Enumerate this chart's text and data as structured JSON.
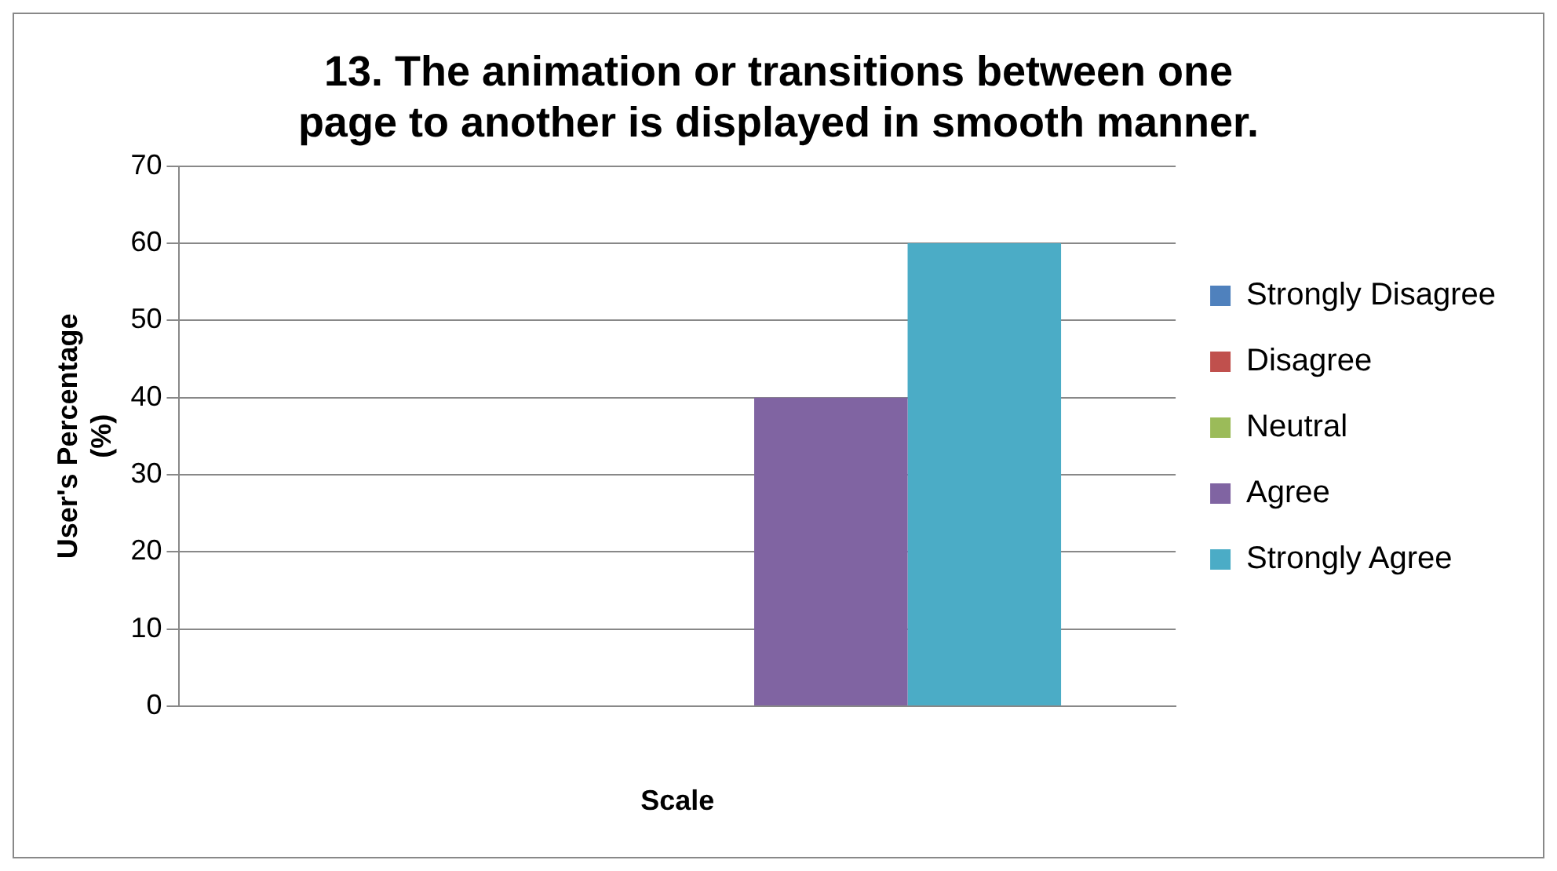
{
  "chart_data": {
    "type": "bar",
    "title": "13. The animation or transitions between one page to another is displayed in smooth manner.",
    "xlabel": "Scale",
    "ylabel": "User's Percentage (%)",
    "categories": [
      null
    ],
    "series": [
      {
        "name": "Strongly Disagree",
        "color": "#4f81bd",
        "values": [
          0
        ]
      },
      {
        "name": "Disagree",
        "color": "#c0504d",
        "values": [
          0
        ]
      },
      {
        "name": "Neutral",
        "color": "#9bbb59",
        "values": [
          0
        ]
      },
      {
        "name": "Agree",
        "color": "#8064a2",
        "values": [
          40
        ]
      },
      {
        "name": "Strongly Agree",
        "color": "#4bacc6",
        "values": [
          60
        ]
      }
    ],
    "ylim": [
      0,
      70
    ],
    "yticks": [
      0,
      10,
      20,
      30,
      40,
      50,
      60,
      70
    ],
    "grid": "y",
    "legend": "right"
  }
}
